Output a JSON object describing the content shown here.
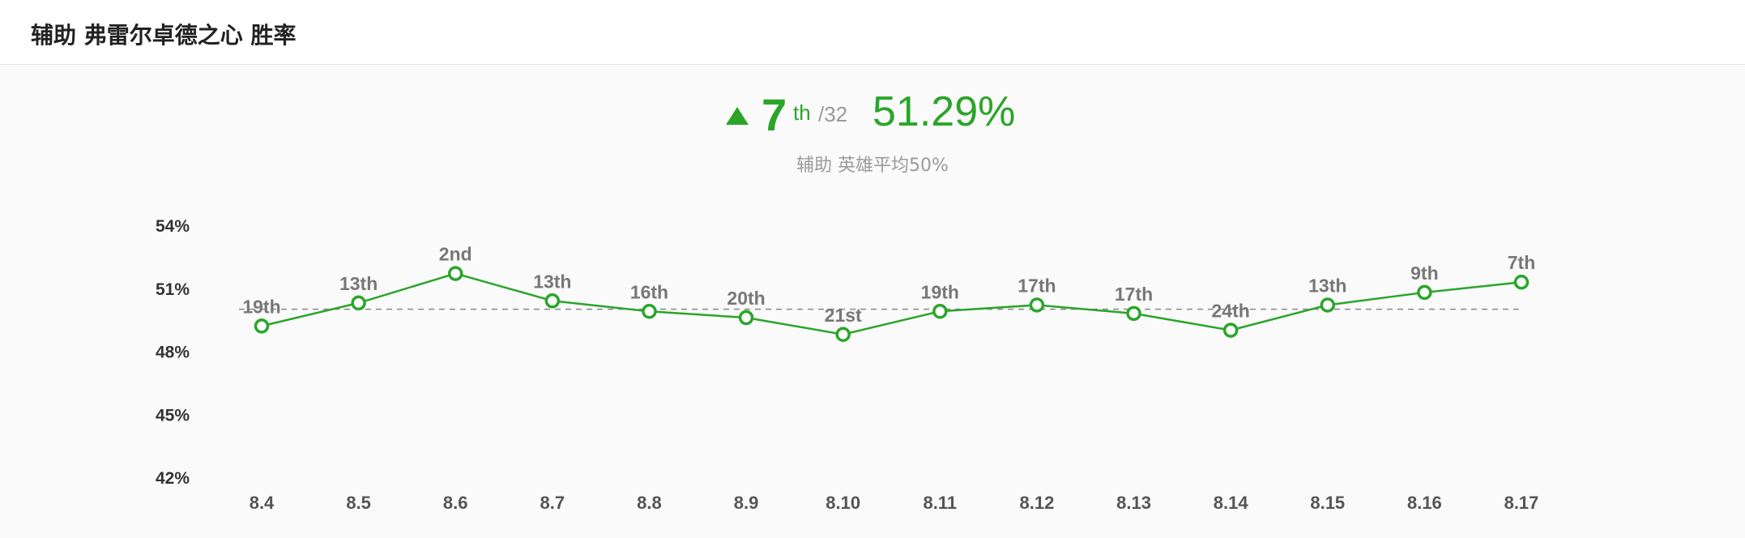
{
  "header": {
    "title": "辅助 弗雷尔卓德之心 胜率"
  },
  "summary": {
    "rank": "7",
    "rank_suffix": "th",
    "rank_total": "/32",
    "win_rate": "51.29%",
    "subtitle": "辅助 英雄平均50%"
  },
  "colors": {
    "accent": "#2aa52a",
    "muted": "#9a9a9a",
    "average_line": "#888888"
  },
  "chart_data": {
    "type": "line",
    "title": "",
    "xlabel": "",
    "ylabel": "",
    "categories": [
      "8.4",
      "8.5",
      "8.6",
      "8.7",
      "8.8",
      "8.9",
      "8.10",
      "8.11",
      "8.12",
      "8.13",
      "8.14",
      "8.15",
      "8.16",
      "8.17"
    ],
    "series": [
      {
        "values": [
          49.2,
          50.3,
          51.7,
          50.4,
          49.9,
          49.6,
          48.8,
          49.9,
          50.2,
          49.8,
          49.0,
          50.2,
          50.8,
          51.29
        ],
        "point_labels": [
          "19th",
          "13th",
          "2nd",
          "13th",
          "16th",
          "20th",
          "21st",
          "19th",
          "17th",
          "17th",
          "24th",
          "13th",
          "9th",
          "7th"
        ]
      }
    ],
    "reference_line": 50,
    "ylim": [
      42,
      54
    ],
    "yticks": [
      54,
      51,
      48,
      45,
      42
    ],
    "ytick_labels": [
      "54%",
      "51%",
      "48%",
      "45%",
      "42%"
    ],
    "grid": false,
    "legend": "none"
  }
}
